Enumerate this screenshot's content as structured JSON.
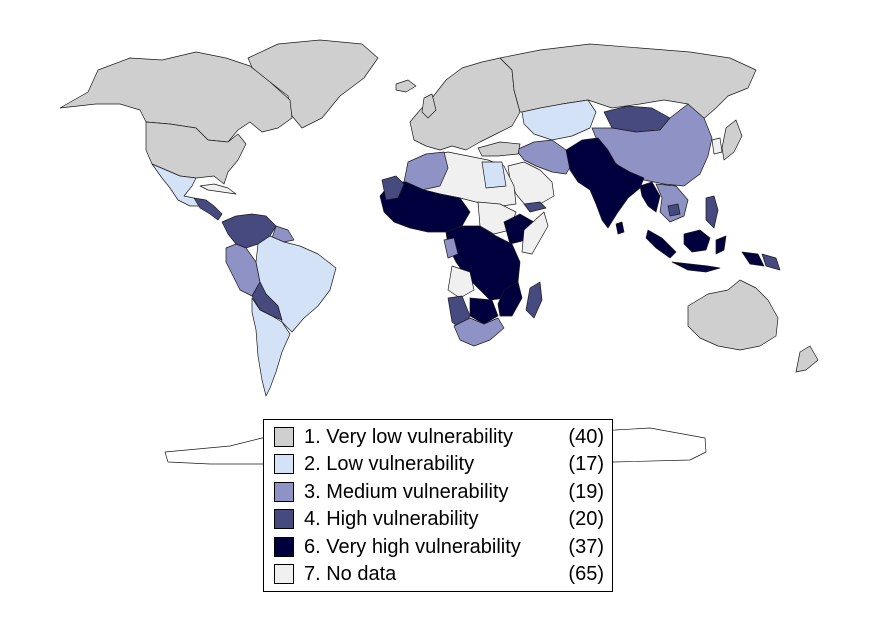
{
  "colors": {
    "very_low": "#cfcfcf",
    "low": "#d3e2f7",
    "medium": "#8e92c4",
    "high": "#464a7f",
    "very_high": "#00003f",
    "no_data": "#f0f0f0"
  },
  "legend": {
    "items": [
      {
        "label": "1. Very low vulnerability",
        "count": "(40)",
        "color": "#cfcfcf"
      },
      {
        "label": "2. Low vulnerability",
        "count": "(17)",
        "color": "#d3e2f7"
      },
      {
        "label": "3. Medium vulnerability",
        "count": "(19)",
        "color": "#8e92c4"
      },
      {
        "label": "4. High vulnerability",
        "count": "(20)",
        "color": "#464a7f"
      },
      {
        "label": "6. Very high vulnerability",
        "count": "(37)",
        "color": "#00003f"
      },
      {
        "label": "7. No data",
        "count": "(65)",
        "color": "#f0f0f0"
      }
    ]
  }
}
